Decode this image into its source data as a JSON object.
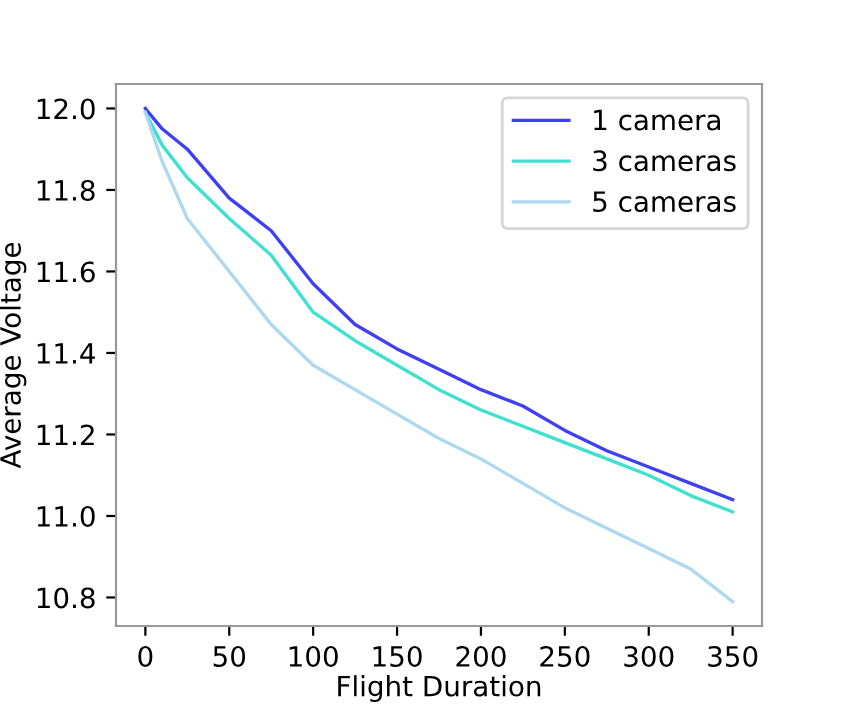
{
  "chart_data": {
    "type": "line",
    "xlabel": "Flight Duration",
    "ylabel": "Average Voltage",
    "x": [
      0,
      10,
      25,
      50,
      75,
      100,
      125,
      150,
      175,
      200,
      225,
      250,
      275,
      300,
      325,
      350
    ],
    "series": [
      {
        "name": "1 camera",
        "color": "#3f3ff5",
        "values": [
          12.0,
          11.95,
          11.9,
          11.78,
          11.7,
          11.57,
          11.47,
          11.41,
          11.36,
          11.31,
          11.27,
          11.21,
          11.16,
          11.12,
          11.08,
          11.04
        ]
      },
      {
        "name": "3 cameras",
        "color": "#40e0d0",
        "values": [
          11.99,
          11.91,
          11.83,
          11.73,
          11.64,
          11.5,
          11.43,
          11.37,
          11.31,
          11.26,
          11.22,
          11.18,
          11.14,
          11.1,
          11.05,
          11.01
        ]
      },
      {
        "name": "5 cameras",
        "color": "#add8f0",
        "values": [
          11.99,
          11.87,
          11.73,
          11.6,
          11.47,
          11.37,
          11.31,
          11.25,
          11.19,
          11.14,
          11.08,
          11.02,
          10.97,
          10.92,
          10.87,
          10.79
        ]
      }
    ],
    "xlim": [
      -17.5,
      367.5
    ],
    "ylim": [
      10.73,
      12.06
    ],
    "xticks": [
      0,
      50,
      100,
      150,
      200,
      250,
      300,
      350
    ],
    "yticks": [
      {
        "value": 10.8,
        "label": "10.8"
      },
      {
        "value": 11.0,
        "label": "11.0"
      },
      {
        "value": 11.2,
        "label": "11.2"
      },
      {
        "value": 11.4,
        "label": "11.4"
      },
      {
        "value": 11.6,
        "label": "11.6"
      },
      {
        "value": 11.8,
        "label": "11.8"
      },
      {
        "value": 12.0,
        "label": "12.0"
      }
    ],
    "legend": "top right",
    "grid": false
  }
}
